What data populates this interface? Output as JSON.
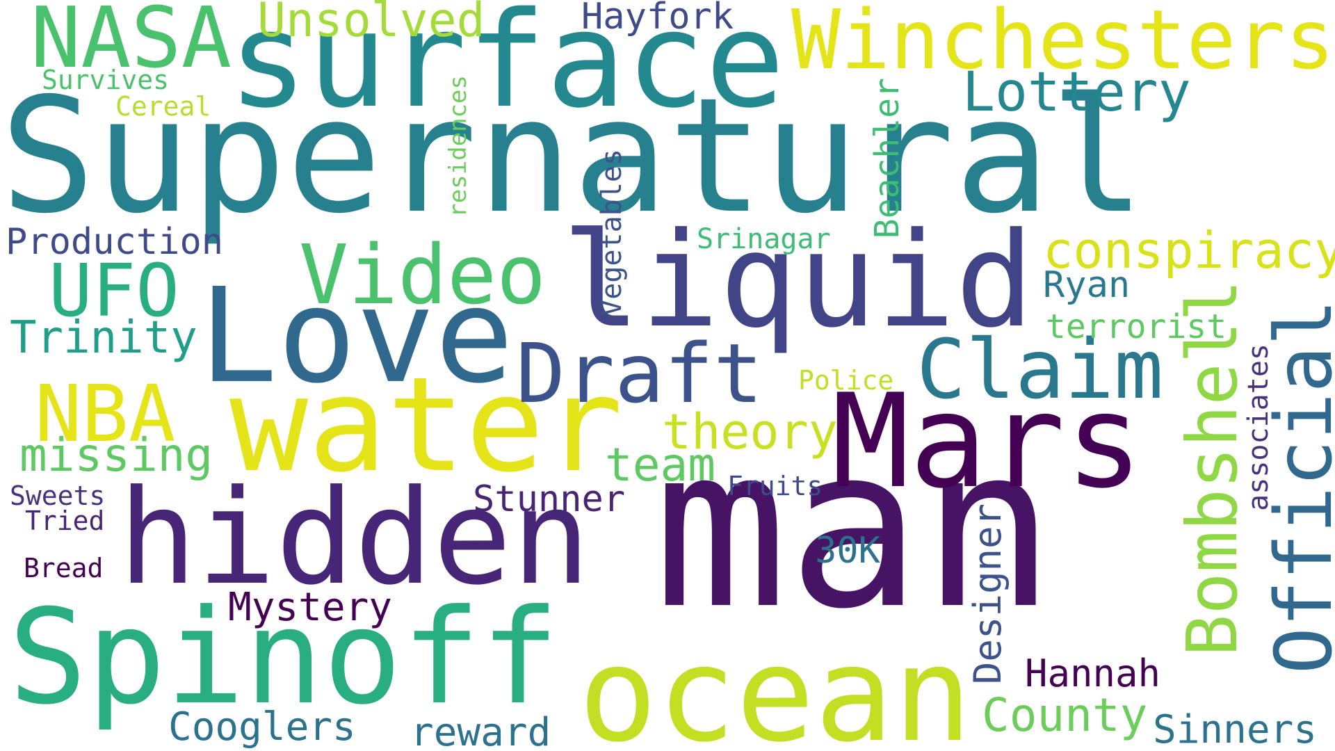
{
  "words": {
    "supernatural": {
      "text": "Supernatural",
      "color": "#26808e"
    },
    "man": {
      "text": "man",
      "color": "#471365"
    },
    "surface": {
      "text": "surface",
      "color": "#23898e"
    },
    "water": {
      "text": "water",
      "color": "#e5e419"
    },
    "liquid": {
      "text": "liquid",
      "color": "#414487"
    },
    "spinoff": {
      "text": "Spinoff",
      "color": "#28ae80"
    },
    "hidden": {
      "text": "hidden",
      "color": "#482677"
    },
    "love": {
      "text": "Love",
      "color": "#31688e"
    },
    "mars": {
      "text": "Mars",
      "color": "#440154"
    },
    "ocean": {
      "text": "ocean",
      "color": "#c2df23"
    },
    "winchesters": {
      "text": "Winchesters",
      "color": "#e5e419"
    },
    "nasa": {
      "text": "NASA",
      "color": "#4ac16d"
    },
    "official": {
      "text": "Official",
      "color": "#31688e"
    },
    "bombshell": {
      "text": "Bombshell",
      "color": "#8fd744"
    },
    "video": {
      "text": "Video",
      "color": "#4ac16d"
    },
    "claim": {
      "text": "Claim",
      "color": "#2a788e"
    },
    "draft": {
      "text": "Draft",
      "color": "#3b528b"
    },
    "ufo": {
      "text": "UFO",
      "color": "#28ae80"
    },
    "nba": {
      "text": "NBA",
      "color": "#e5e419"
    },
    "lottery": {
      "text": "Lottery",
      "color": "#24868e"
    },
    "conspiracy": {
      "text": "conspiracy",
      "color": "#d8e219"
    },
    "unsolved": {
      "text": "Unsolved",
      "color": "#a5db36"
    },
    "hayfork": {
      "text": "Hayfork",
      "color": "#3e4a89"
    },
    "theory": {
      "text": "theory",
      "color": "#c8e020"
    },
    "missing": {
      "text": "missing",
      "color": "#5ec962"
    },
    "team": {
      "text": "team",
      "color": "#5ec962"
    },
    "trinity": {
      "text": "Trinity",
      "color": "#1f9e89"
    },
    "production": {
      "text": "Production",
      "color": "#3e4a89"
    },
    "mystery": {
      "text": "Mystery",
      "color": "#440154"
    },
    "stunner": {
      "text": "Stunner",
      "color": "#482475"
    },
    "county": {
      "text": "County",
      "color": "#6ccd5a"
    },
    "cooglers": {
      "text": "Cooglers",
      "color": "#2c728e"
    },
    "reward": {
      "text": "reward",
      "color": "#2c728e"
    },
    "sinners": {
      "text": "Sinners",
      "color": "#2c728e"
    },
    "hannah": {
      "text": "Hannah",
      "color": "#440154"
    },
    "designer": {
      "text": "Designer",
      "color": "#3b528b"
    },
    "thirtyk": {
      "text": "30K",
      "color": "#2c728e"
    },
    "ryan": {
      "text": "Ryan",
      "color": "#2a788e"
    },
    "terrorist": {
      "text": "terrorist",
      "color": "#5ec962"
    },
    "associates": {
      "text": "associates",
      "color": "#46337e"
    },
    "vegetables": {
      "text": "Vegetables",
      "color": "#3b528b"
    },
    "beachler": {
      "text": "Beachler",
      "color": "#3dbc74"
    },
    "residences": {
      "text": "residences",
      "color": "#6ccd5a"
    },
    "srinagar": {
      "text": "Srinagar",
      "color": "#3dbc74"
    },
    "police": {
      "text": "Police",
      "color": "#c2df23"
    },
    "fruits": {
      "text": "Fruits",
      "color": "#3e4a89"
    },
    "survives": {
      "text": "Survives",
      "color": "#4ac16d"
    },
    "cereal": {
      "text": "Cereal",
      "color": "#b5de2b"
    },
    "sweets": {
      "text": "Sweets",
      "color": "#46337e"
    },
    "tried": {
      "text": "Tried",
      "color": "#482475"
    },
    "bread": {
      "text": "Bread",
      "color": "#440154"
    }
  }
}
